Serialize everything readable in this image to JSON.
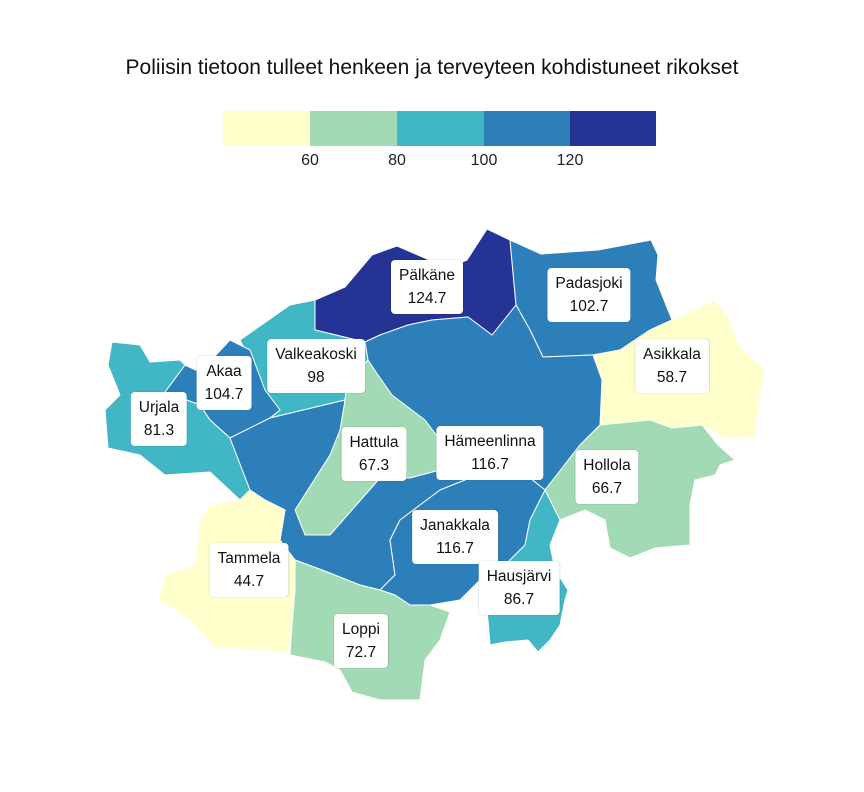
{
  "title": "Poliisin tietoon tulleet henkeen ja terveyteen kohdistuneet rikokset",
  "legend": {
    "colors": [
      "#ffffcc",
      "#a1dab4",
      "#41b6c4",
      "#2c7fb8",
      "#253494"
    ],
    "ticks": [
      "60",
      "80",
      "100",
      "120"
    ]
  },
  "regions": [
    {
      "name": "Pälkäne",
      "value": "124.7",
      "color": "#253494"
    },
    {
      "name": "Padasjoki",
      "value": "102.7",
      "color": "#2c7fb8"
    },
    {
      "name": "Asikkala",
      "value": "58.7",
      "color": "#ffffcc"
    },
    {
      "name": "Valkeakoski",
      "value": "98",
      "color": "#41b6c4"
    },
    {
      "name": "Akaa",
      "value": "104.7",
      "color": "#2c7fb8"
    },
    {
      "name": "Urjala",
      "value": "81.3",
      "color": "#41b6c4"
    },
    {
      "name": "Hattula",
      "value": "67.3",
      "color": "#a1dab4"
    },
    {
      "name": "Hämeenlinna",
      "value": "116.7",
      "color": "#2c7fb8"
    },
    {
      "name": "Hollola",
      "value": "66.7",
      "color": "#a1dab4"
    },
    {
      "name": "Janakkala",
      "value": "116.7",
      "color": "#2c7fb8"
    },
    {
      "name": "Tammela",
      "value": "44.7",
      "color": "#ffffcc"
    },
    {
      "name": "Hausjärvi",
      "value": "86.7",
      "color": "#41b6c4"
    },
    {
      "name": "Loppi",
      "value": "72.7",
      "color": "#a1dab4"
    }
  ]
}
